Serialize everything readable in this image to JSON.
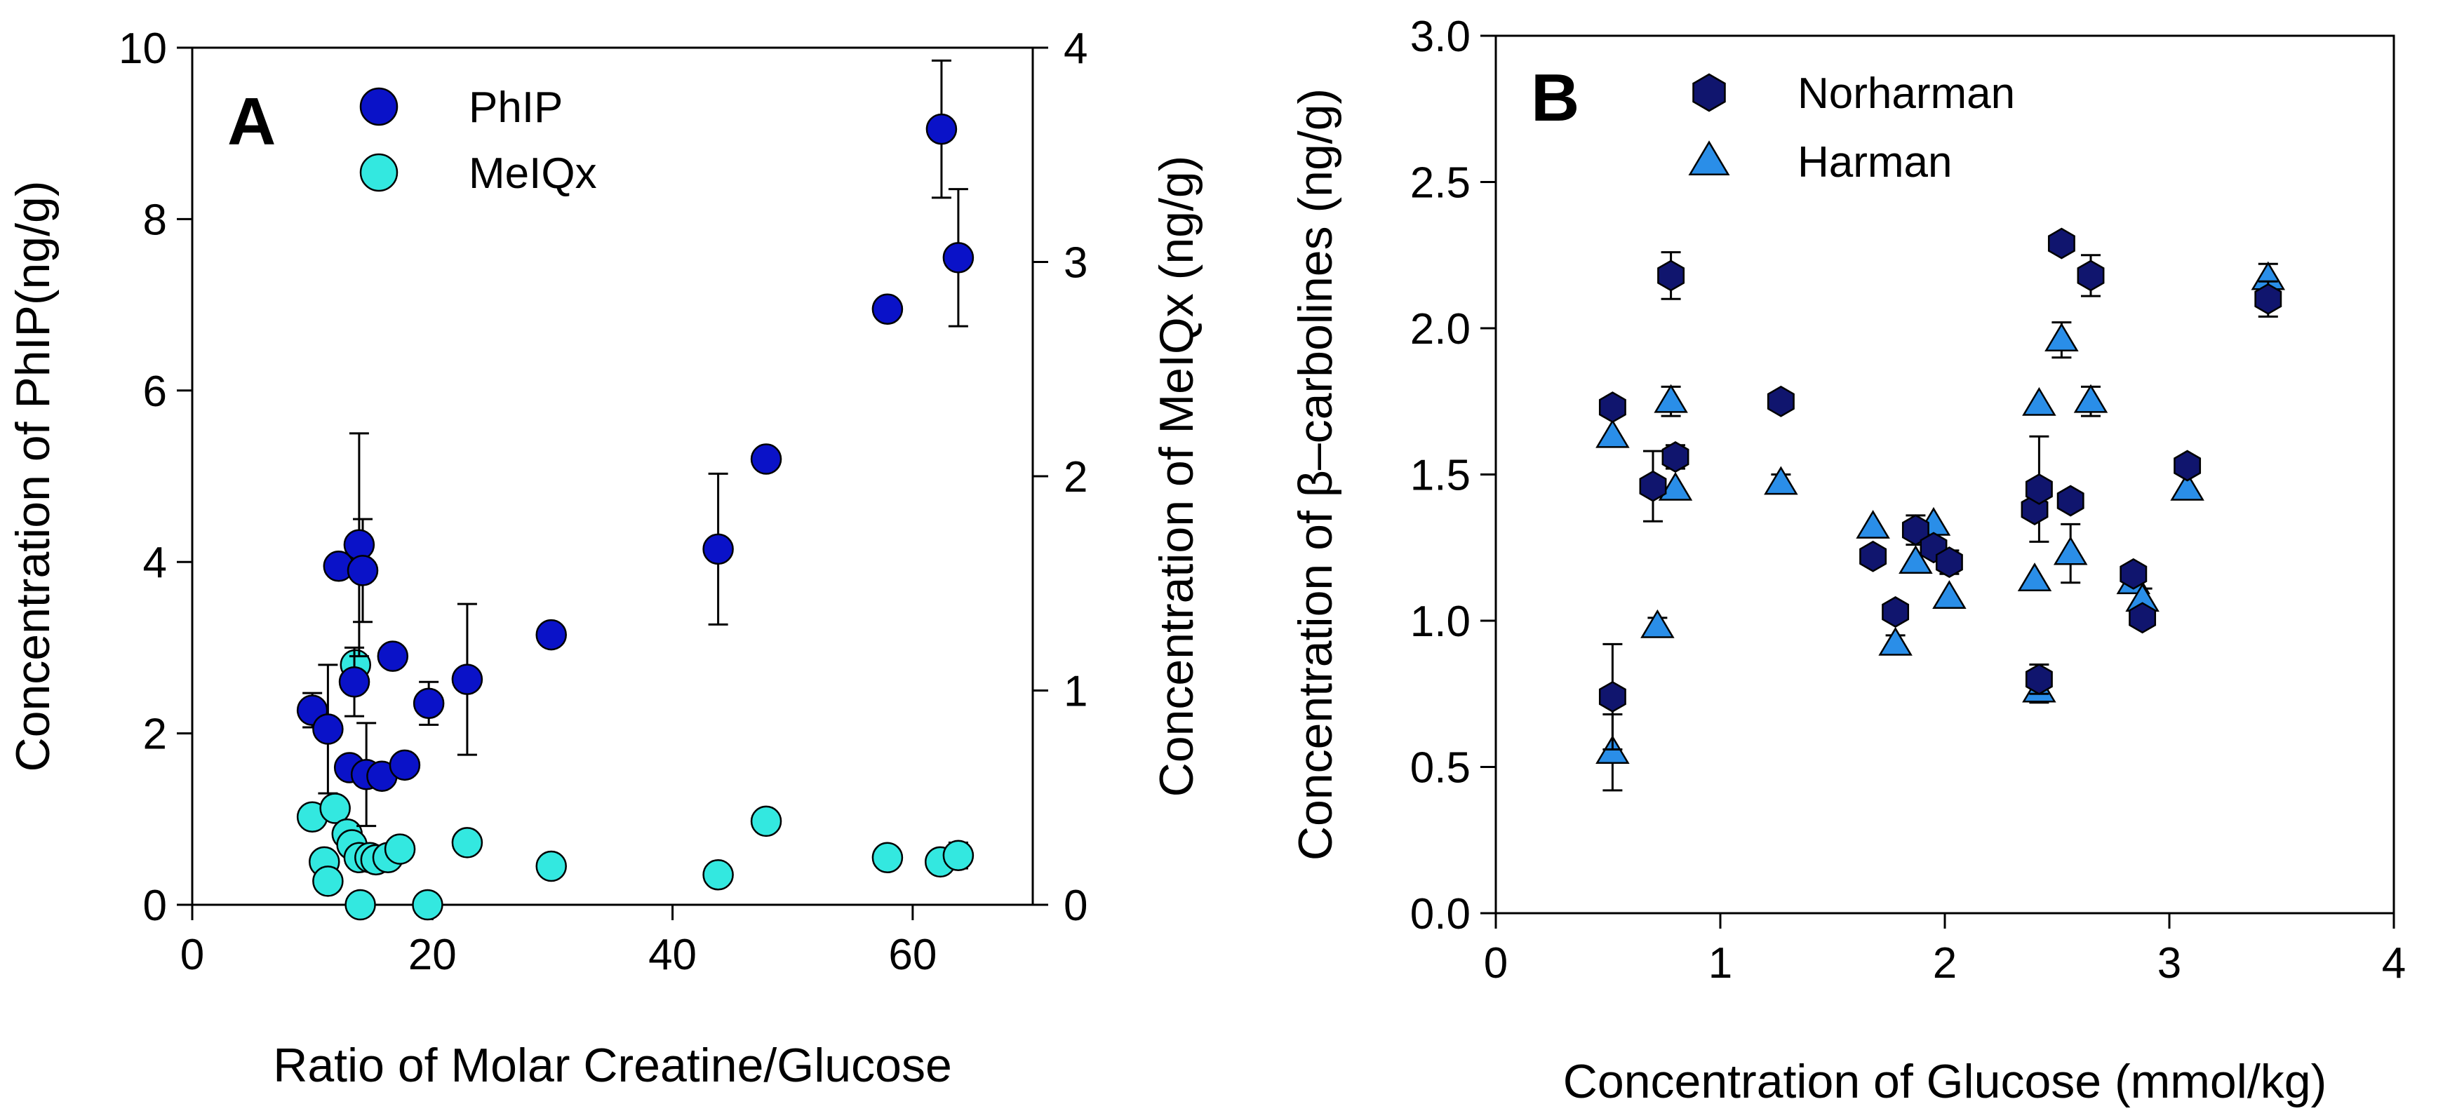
{
  "chart_data": [
    {
      "panel": "A",
      "type": "scatter",
      "xlabel": "Ratio of Molar Creatine/Glucose",
      "ylabel": "Concentration of PhIP(ng/g)",
      "y2label": "Concentration of MeIQx (ng/g)",
      "xlim": [
        0,
        70
      ],
      "ylim": [
        0,
        10
      ],
      "y2lim": [
        0,
        4
      ],
      "xticks": [
        0,
        20,
        40,
        60
      ],
      "yticks": [
        0,
        2,
        4,
        6,
        8,
        10
      ],
      "y2ticks": [
        0,
        1,
        2,
        3,
        4
      ],
      "grid": false,
      "legend_position": "top-left",
      "series": [
        {
          "name": "PhIP",
          "axis": "left",
          "color": "#0a12c8",
          "marker": "circle",
          "points": [
            {
              "x": 10,
              "y": 2.27,
              "err": 0.2
            },
            {
              "x": 11.3,
              "y": 2.05,
              "err": 0.75
            },
            {
              "x": 12.2,
              "y": 3.95,
              "err": 0
            },
            {
              "x": 13.1,
              "y": 1.6,
              "err": 0
            },
            {
              "x": 13.5,
              "y": 2.6,
              "err": 0.4
            },
            {
              "x": 13.9,
              "y": 4.2,
              "err": 1.3
            },
            {
              "x": 14.2,
              "y": 3.9,
              "err": 0.6
            },
            {
              "x": 14.5,
              "y": 1.52,
              "err": 0.6
            },
            {
              "x": 15.8,
              "y": 1.5,
              "err": 0
            },
            {
              "x": 16.7,
              "y": 2.9,
              "err": 0.1
            },
            {
              "x": 17.7,
              "y": 1.63,
              "err": 0
            },
            {
              "x": 19.7,
              "y": 2.35,
              "err": 0.25
            },
            {
              "x": 22.9,
              "y": 2.63,
              "err": 0.88
            },
            {
              "x": 29.9,
              "y": 3.15,
              "err": 0
            },
            {
              "x": 43.8,
              "y": 4.15,
              "err": 0.88
            },
            {
              "x": 47.8,
              "y": 5.2,
              "err": 0
            },
            {
              "x": 57.9,
              "y": 6.95,
              "err": 0.1
            },
            {
              "x": 62.4,
              "y": 9.05,
              "err": 0.8
            },
            {
              "x": 63.8,
              "y": 7.55,
              "err": 0.8
            }
          ]
        },
        {
          "name": "MeIQx",
          "axis": "right",
          "color": "#33e8e0",
          "marker": "circle",
          "points": [
            {
              "x": 10,
              "y": 0.41,
              "err": 0
            },
            {
              "x": 11,
              "y": 0.2,
              "err": 0
            },
            {
              "x": 11.3,
              "y": 0.11,
              "err": 0
            },
            {
              "x": 11.9,
              "y": 0.45,
              "err": 0
            },
            {
              "x": 12.9,
              "y": 0.33,
              "err": 0
            },
            {
              "x": 13.3,
              "y": 0.28,
              "err": 0
            },
            {
              "x": 13.6,
              "y": 1.12,
              "err": 0
            },
            {
              "x": 13.9,
              "y": 0.22,
              "err": 0
            },
            {
              "x": 14.0,
              "y": 0.0,
              "err": 0
            },
            {
              "x": 14.8,
              "y": 0.22,
              "err": 0
            },
            {
              "x": 15.3,
              "y": 0.21,
              "err": 0
            },
            {
              "x": 16.3,
              "y": 0.22,
              "err": 0
            },
            {
              "x": 17.3,
              "y": 0.26,
              "err": 0
            },
            {
              "x": 19.6,
              "y": 0.0,
              "err": 0
            },
            {
              "x": 22.9,
              "y": 0.29,
              "err": 0
            },
            {
              "x": 29.9,
              "y": 0.18,
              "err": 0
            },
            {
              "x": 43.8,
              "y": 0.14,
              "err": 0.04
            },
            {
              "x": 47.8,
              "y": 0.39,
              "err": 0
            },
            {
              "x": 57.9,
              "y": 0.22,
              "err": 0
            },
            {
              "x": 62.3,
              "y": 0.2,
              "err": 0
            },
            {
              "x": 63.8,
              "y": 0.23,
              "err": 0.06
            }
          ]
        }
      ]
    },
    {
      "panel": "B",
      "type": "scatter",
      "xlabel": "Concentration of Glucose (mmol/kg)",
      "ylabel": "Concentration of β–carbolines (ng/g)",
      "xlim": [
        0,
        4
      ],
      "ylim": [
        0,
        3
      ],
      "xticks": [
        0,
        1,
        2,
        3,
        4
      ],
      "yticks": [
        0.0,
        0.5,
        1.0,
        1.5,
        2.0,
        2.5,
        3.0
      ],
      "grid": false,
      "legend_position": "top-left",
      "series": [
        {
          "name": "Norharman",
          "color": "#10156e",
          "marker": "hexagon",
          "points": [
            {
              "x": 0.52,
              "y": 1.73,
              "err": 0
            },
            {
              "x": 0.52,
              "y": 0.74,
              "err": 0.18
            },
            {
              "x": 0.7,
              "y": 1.46,
              "err": 0.12
            },
            {
              "x": 0.78,
              "y": 2.18,
              "err": 0.08
            },
            {
              "x": 0.8,
              "y": 1.56,
              "err": 0.04
            },
            {
              "x": 1.27,
              "y": 1.75,
              "err": 0
            },
            {
              "x": 1.68,
              "y": 1.22,
              "err": 0
            },
            {
              "x": 1.78,
              "y": 1.03,
              "err": 0
            },
            {
              "x": 1.87,
              "y": 1.31,
              "err": 0.05
            },
            {
              "x": 1.95,
              "y": 1.25,
              "err": 0
            },
            {
              "x": 2.02,
              "y": 1.2,
              "err": 0.04
            },
            {
              "x": 2.4,
              "y": 1.38,
              "err": 0
            },
            {
              "x": 2.42,
              "y": 1.45,
              "err": 0.18
            },
            {
              "x": 2.42,
              "y": 0.8,
              "err": 0.05
            },
            {
              "x": 2.52,
              "y": 2.29,
              "err": 0
            },
            {
              "x": 2.56,
              "y": 1.41,
              "err": 0
            },
            {
              "x": 2.65,
              "y": 2.18,
              "err": 0.07
            },
            {
              "x": 2.84,
              "y": 1.16,
              "err": 0
            },
            {
              "x": 2.88,
              "y": 1.01,
              "err": 0
            },
            {
              "x": 3.08,
              "y": 1.53,
              "err": 0
            },
            {
              "x": 3.44,
              "y": 2.1,
              "err": 0.06
            }
          ]
        },
        {
          "name": "Harman",
          "color": "#2a8ee8",
          "marker": "triangle",
          "points": [
            {
              "x": 0.52,
              "y": 1.63,
              "err": 0
            },
            {
              "x": 0.52,
              "y": 0.55,
              "err": 0.13
            },
            {
              "x": 0.72,
              "y": 0.98,
              "err": 0.03
            },
            {
              "x": 0.78,
              "y": 1.75,
              "err": 0.05
            },
            {
              "x": 0.8,
              "y": 1.45,
              "err": 0
            },
            {
              "x": 1.27,
              "y": 1.47,
              "err": 0.03
            },
            {
              "x": 1.68,
              "y": 1.32,
              "err": 0
            },
            {
              "x": 1.78,
              "y": 0.92,
              "err": 0.03
            },
            {
              "x": 1.87,
              "y": 1.2,
              "err": 0
            },
            {
              "x": 1.95,
              "y": 1.33,
              "err": 0
            },
            {
              "x": 2.02,
              "y": 1.08,
              "err": 0
            },
            {
              "x": 2.4,
              "y": 1.14,
              "err": 0
            },
            {
              "x": 2.42,
              "y": 1.74,
              "err": 0
            },
            {
              "x": 2.42,
              "y": 0.76,
              "err": 0.04
            },
            {
              "x": 2.52,
              "y": 1.96,
              "err": 0.06
            },
            {
              "x": 2.56,
              "y": 1.23,
              "err": 0.1
            },
            {
              "x": 2.65,
              "y": 1.75,
              "err": 0.05
            },
            {
              "x": 2.84,
              "y": 1.13,
              "err": 0
            },
            {
              "x": 2.88,
              "y": 1.07,
              "err": 0.04
            },
            {
              "x": 3.08,
              "y": 1.45,
              "err": 0
            },
            {
              "x": 3.44,
              "y": 2.17,
              "err": 0.05
            }
          ]
        }
      ]
    }
  ]
}
